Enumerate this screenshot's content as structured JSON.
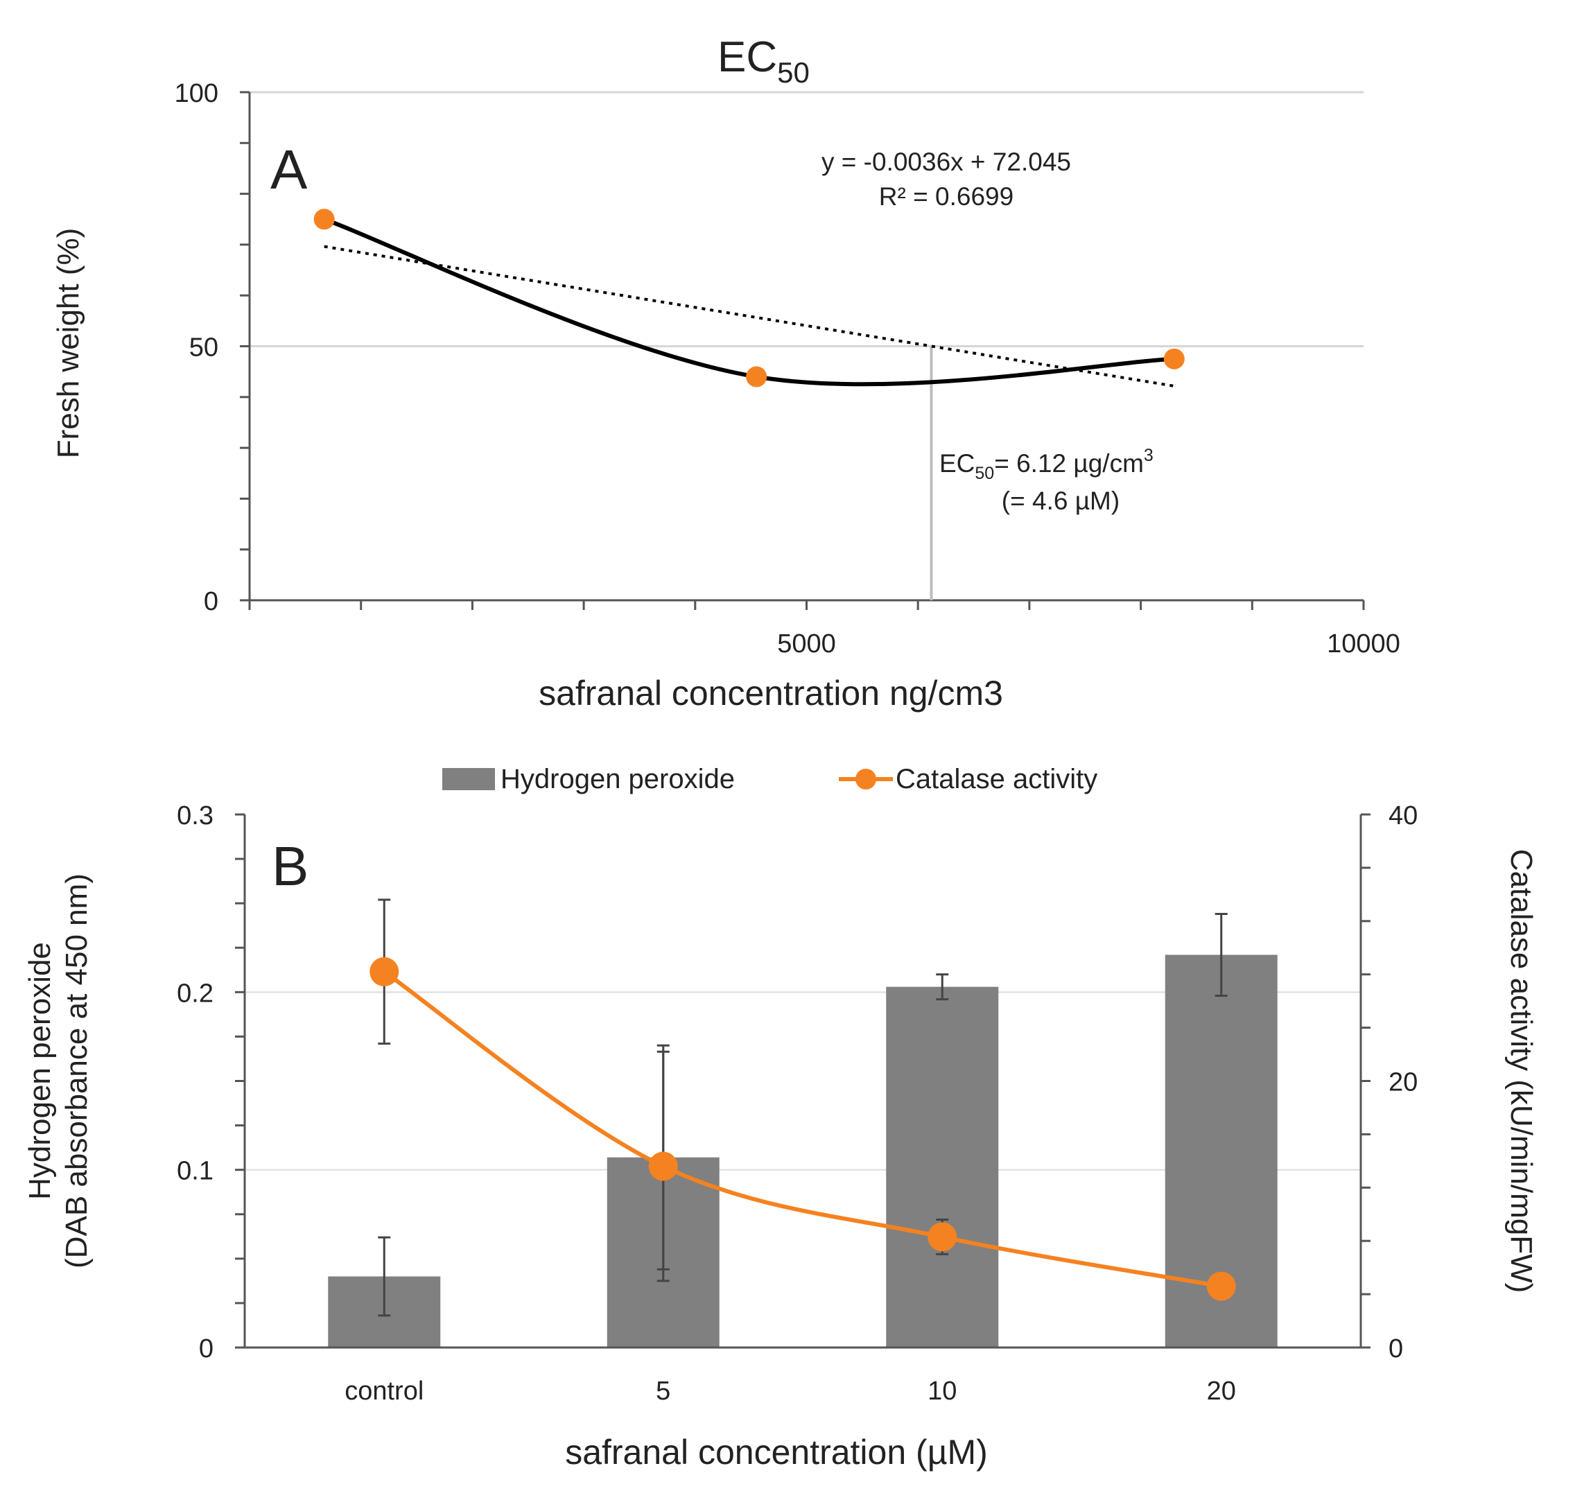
{
  "chart_data": [
    {
      "panel": "A",
      "type": "line",
      "title": "EC",
      "title_sub": "50",
      "panel_letter": "A",
      "xlabel": "safranal concentration ng/cm3",
      "ylabel": "Fresh weight (%)",
      "xlim": [
        0,
        10000
      ],
      "ylim": [
        0,
        100
      ],
      "x_ticks": [
        5000,
        10000
      ],
      "x_tick_labels": [
        "5000",
        "10000"
      ],
      "y_ticks": [
        0,
        50,
        100
      ],
      "y_tick_labels": [
        "0",
        "50",
        "100"
      ],
      "grid": true,
      "series": [
        {
          "name": "Fresh weight",
          "x": [
            670,
            4550,
            8300
          ],
          "y": [
            75,
            44,
            47.5
          ],
          "color": "#f58220",
          "line_color": "#000000",
          "smooth": true
        }
      ],
      "trendline": {
        "slope": -0.0036,
        "intercept": 72.045,
        "x_start": 670,
        "x_end": 8300,
        "equation": "y = -0.0036x + 72.045",
        "r2_label": "R² = 0.6699"
      },
      "ec50_x": 6120,
      "ec50_label_main": "EC",
      "ec50_label_sub": "50",
      "ec50_label_value": "= 6.12 µg/cm",
      "ec50_label_sup": "3",
      "ec50_label_line2": "(= 4.6 µM)"
    },
    {
      "panel": "B",
      "type": "bar",
      "panel_letter": "B",
      "categories": [
        "control",
        "5",
        "10",
        "20"
      ],
      "xlabel": "safranal concentration (µM)",
      "ylabel_line1": "Hydrogen peroxide",
      "ylabel_line2": "(DAB absorbance at 450 nm)",
      "y2label": "Catalase activity (kU/min/mgFW)",
      "ylim": [
        0,
        0.3
      ],
      "y_ticks": [
        0,
        0.1,
        0.2,
        0.3
      ],
      "y_tick_labels": [
        "0",
        "0.1",
        "0.2",
        "0.3"
      ],
      "y2lim": [
        0,
        40
      ],
      "y2_ticks": [
        0,
        20,
        40
      ],
      "y2_tick_labels": [
        "0",
        "20",
        "40"
      ],
      "grid": true,
      "legend_position": "top",
      "series": [
        {
          "name": "Hydrogen peroxide",
          "kind": "bar",
          "axis": "left",
          "values": [
            0.04,
            0.107,
            0.203,
            0.221
          ],
          "errors": [
            0.022,
            0.063,
            0.007,
            0.023
          ],
          "color": "#808080"
        },
        {
          "name": "Catalase activity",
          "kind": "line",
          "axis": "right",
          "values": [
            28.2,
            13.6,
            8.3,
            4.6
          ],
          "errors": [
            5.4,
            8.6,
            1.3,
            0
          ],
          "color": "#f58220"
        }
      ]
    }
  ]
}
